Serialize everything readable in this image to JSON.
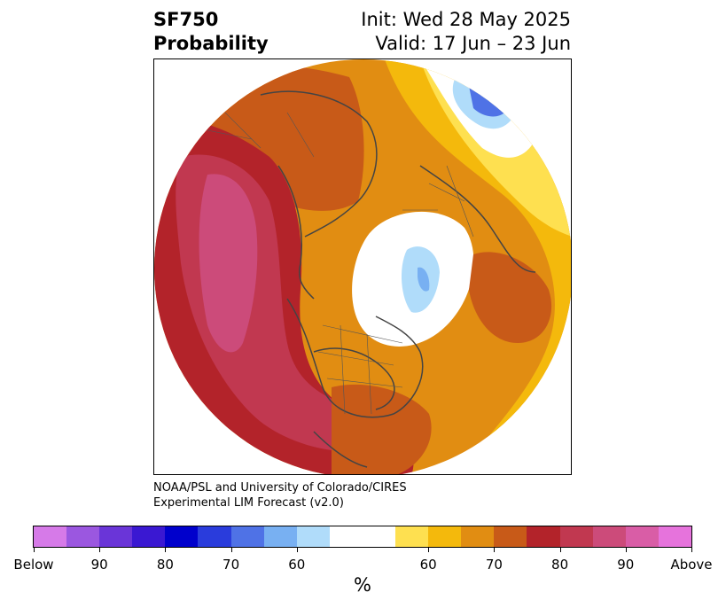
{
  "header": {
    "variable": "SF750",
    "measure": "Probability",
    "init": "Init: Wed 28 May 2025",
    "valid": "Valid: 17 Jun – 23 Jun"
  },
  "credit": {
    "line1": "NOAA/PSL and University of Colorado/CIRES",
    "line2": "Experimental LIM Forecast (v2.0)"
  },
  "colorbar": {
    "units": "%",
    "below_colors": [
      "#d67ae8",
      "#9b57e0",
      "#6a35d8",
      "#3a18d2",
      "#0000cc",
      "#2a3cdc",
      "#4f72e6",
      "#78b0f2",
      "#b0dcfa"
    ],
    "neutral_color": "#ffffff",
    "above_colors": [
      "#fee050",
      "#f4b90c",
      "#e18d12",
      "#c85a18",
      "#b3232a",
      "#c13850",
      "#cc4b7a",
      "#d95da6",
      "#e673dc"
    ],
    "ticks": [
      "Below",
      "90",
      "80",
      "70",
      "60",
      "60",
      "70",
      "80",
      "90",
      "Above"
    ]
  }
}
